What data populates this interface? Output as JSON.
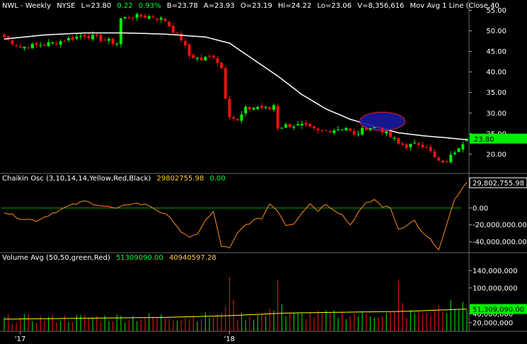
{
  "price_header": {
    "symbol": "NWL - Weekly",
    "exchange": "NYSE",
    "last": "L=23.80",
    "change": "0.22",
    "change_pct": "0.93%",
    "bid": "B=23.78",
    "ask": "A=23.93",
    "open": "O=23.19",
    "high": "Hi=24.22",
    "low": "Lo=23.06",
    "volume": "V=8,356,616",
    "study": "Mov Avg 1 Line (Close,40"
  },
  "osc_header": {
    "label": "Chaikin Osc (3,10,14,14,Yellow,Red,Black)",
    "value": "29802755.98",
    "zero": "0.00"
  },
  "vol_header": {
    "label": "Volume Avg (50,50,green,Red)",
    "avg1": "51309090.00",
    "avg2": "40940597.28"
  },
  "price_axis": {
    "ticks": [
      "55.00",
      "50.00",
      "45.00",
      "40.00",
      "35.00",
      "30.00",
      "25.00",
      "20.00"
    ],
    "last_label": "23.80"
  },
  "osc_axis": {
    "ticks": [
      "0.00",
      "-20,000,000.00",
      "-40,000,000.00"
    ],
    "last_label": "29,802,755.98"
  },
  "vol_axis": {
    "ticks": [
      "140,000,000",
      "100,000,000",
      "40,000,000",
      "20,000,000"
    ],
    "last_label": "51,309,090.00"
  },
  "x_axis": {
    "labels": [
      {
        "text": "'17",
        "week": 4
      },
      {
        "text": "'18",
        "week": 56
      }
    ]
  },
  "colors": {
    "up": "#00ee00",
    "down": "#ee1111",
    "ma": "#ffffff",
    "osc": "#ff8c1a",
    "zero_line": "#00aa00",
    "ellipse_fill": "#1a1aa0",
    "ellipse_stroke": "#ff2222",
    "vol_avg": "#ffff00",
    "vol_up": "#00cc00",
    "vol_down": "#dd1111",
    "last_tag": "#00ee00"
  },
  "chart_data": {
    "type": "candlestick",
    "interval": "weekly",
    "price_ylim": [
      15.5,
      57.5
    ],
    "weeks": 116,
    "close_anchors": [
      [
        0,
        48.5
      ],
      [
        4,
        46
      ],
      [
        8,
        46.5
      ],
      [
        12,
        47
      ],
      [
        16,
        48
      ],
      [
        20,
        49
      ],
      [
        24,
        48
      ],
      [
        28,
        47
      ],
      [
        29,
        53
      ],
      [
        32,
        53.5
      ],
      [
        37,
        53.5
      ],
      [
        40,
        52.5
      ],
      [
        42,
        50
      ],
      [
        44,
        48
      ],
      [
        46,
        44
      ],
      [
        49,
        43
      ],
      [
        52,
        44
      ],
      [
        54,
        41
      ],
      [
        55,
        34
      ],
      [
        56,
        29.5
      ],
      [
        58,
        28
      ],
      [
        60,
        31
      ],
      [
        63,
        31.5
      ],
      [
        66,
        31
      ],
      [
        67,
        32
      ],
      [
        68,
        26.5
      ],
      [
        70,
        27
      ],
      [
        74,
        27
      ],
      [
        78,
        25.5
      ],
      [
        82,
        26
      ],
      [
        85,
        26.5
      ],
      [
        87,
        24.5
      ],
      [
        90,
        26.5
      ],
      [
        93,
        26.5
      ],
      [
        95,
        25
      ],
      [
        97,
        23.5
      ],
      [
        98,
        22.5
      ],
      [
        100,
        22
      ],
      [
        103,
        22.5
      ],
      [
        105,
        22
      ],
      [
        107,
        19
      ],
      [
        109,
        17.5
      ],
      [
        111,
        19.5
      ],
      [
        113,
        22
      ],
      [
        115,
        23.8
      ]
    ],
    "ma_anchors": [
      [
        0,
        48
      ],
      [
        10,
        49
      ],
      [
        20,
        49.5
      ],
      [
        30,
        49.5
      ],
      [
        40,
        49.2
      ],
      [
        50,
        48.5
      ],
      [
        56,
        47
      ],
      [
        62,
        43
      ],
      [
        68,
        39
      ],
      [
        74,
        34.5
      ],
      [
        80,
        31
      ],
      [
        86,
        28.5
      ],
      [
        92,
        26.8
      ],
      [
        98,
        25.2
      ],
      [
        104,
        24.5
      ],
      [
        110,
        24
      ],
      [
        115,
        23.5
      ]
    ],
    "osc_ylim": [
      -52000000,
      40000000
    ],
    "osc_anchors": [
      [
        0,
        -5000000
      ],
      [
        4,
        -12000000
      ],
      [
        8,
        -15000000
      ],
      [
        12,
        -6000000
      ],
      [
        16,
        2000000
      ],
      [
        20,
        8000000
      ],
      [
        24,
        3000000
      ],
      [
        28,
        -1000000
      ],
      [
        32,
        6000000
      ],
      [
        36,
        3000000
      ],
      [
        40,
        -8000000
      ],
      [
        42,
        -15000000
      ],
      [
        44,
        -28000000
      ],
      [
        46,
        -36000000
      ],
      [
        48,
        -30000000
      ],
      [
        50,
        -15000000
      ],
      [
        52,
        -5000000
      ],
      [
        54,
        -45000000
      ],
      [
        56,
        -48000000
      ],
      [
        58,
        -30000000
      ],
      [
        60,
        -20000000
      ],
      [
        62,
        -15000000
      ],
      [
        64,
        -12000000
      ],
      [
        66,
        5000000
      ],
      [
        68,
        -3000000
      ],
      [
        70,
        -20000000
      ],
      [
        72,
        -18000000
      ],
      [
        74,
        -5000000
      ],
      [
        76,
        5000000
      ],
      [
        78,
        -3000000
      ],
      [
        80,
        5000000
      ],
      [
        82,
        -2000000
      ],
      [
        84,
        -8000000
      ],
      [
        86,
        -20000000
      ],
      [
        88,
        -5000000
      ],
      [
        90,
        5000000
      ],
      [
        92,
        10000000
      ],
      [
        94,
        2000000
      ],
      [
        96,
        0
      ],
      [
        98,
        -25000000
      ],
      [
        100,
        -20000000
      ],
      [
        102,
        -15000000
      ],
      [
        104,
        -30000000
      ],
      [
        106,
        -38000000
      ],
      [
        108,
        -50000000
      ],
      [
        110,
        -20000000
      ],
      [
        112,
        10000000
      ],
      [
        115,
        29802755.98
      ]
    ],
    "vol_ylim": [
      0,
      160000000
    ],
    "vol_base": 28000000,
    "vol_avg_anchors": [
      [
        0,
        28000000
      ],
      [
        20,
        30000000
      ],
      [
        40,
        32000000
      ],
      [
        56,
        36000000
      ],
      [
        70,
        42000000
      ],
      [
        85,
        44000000
      ],
      [
        100,
        46000000
      ],
      [
        115,
        51309090
      ]
    ],
    "vol_spikes": [
      [
        56,
        125000000
      ],
      [
        57,
        72000000
      ],
      [
        68,
        118000000
      ],
      [
        69,
        62000000
      ],
      [
        67,
        48000000
      ],
      [
        98,
        118000000
      ],
      [
        99,
        65000000
      ],
      [
        108,
        60000000
      ],
      [
        111,
        72000000
      ],
      [
        112,
        52000000
      ],
      [
        114,
        68000000
      ],
      [
        55,
        58000000
      ],
      [
        66,
        52000000
      ]
    ]
  }
}
